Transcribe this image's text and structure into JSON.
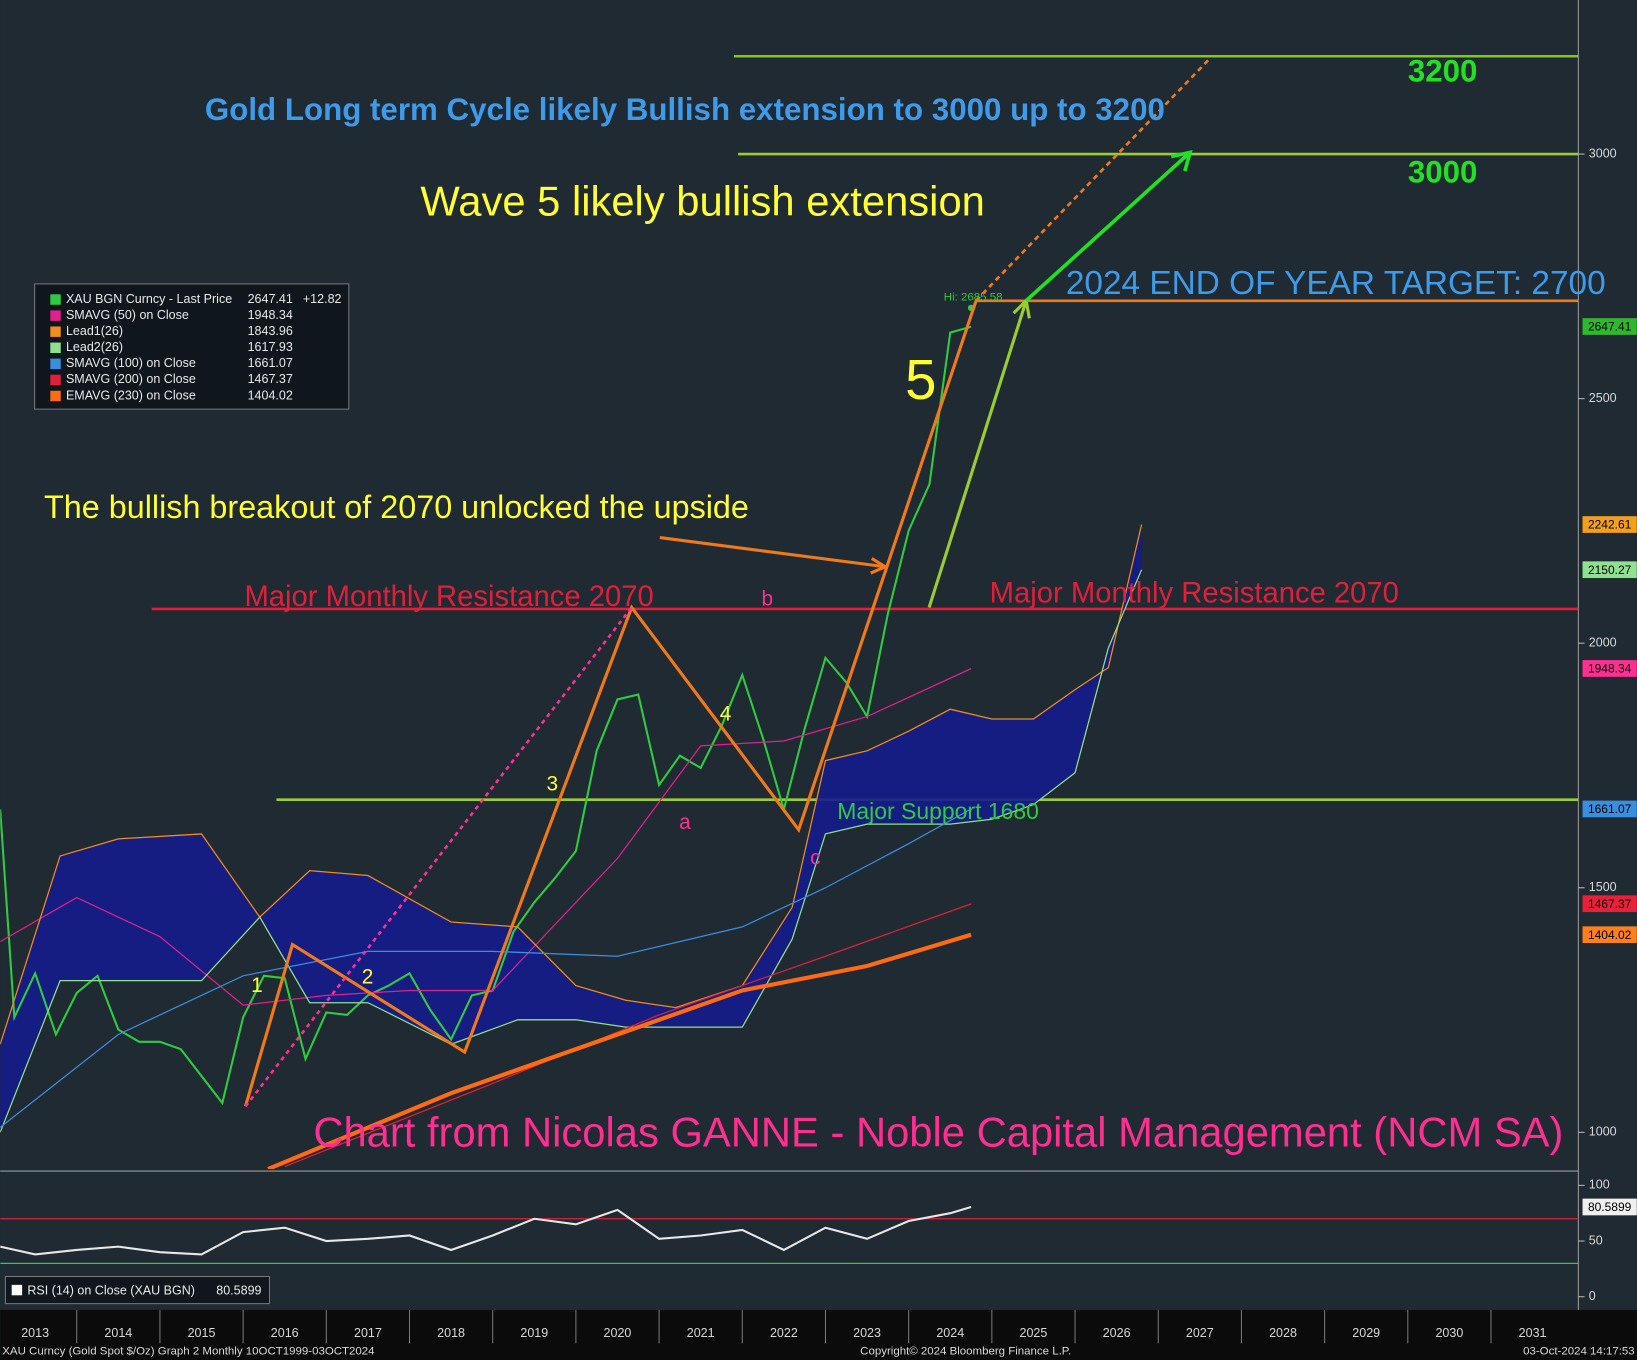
{
  "chart_data": [
    {
      "type": "line",
      "title": "Gold Long term Cycle likely Bullish extension to 3000 up to 3200",
      "annotations": [
        "Wave 5 likely bullish extension",
        "The bullish breakout of 2070 unlocked the upside",
        "Major Monthly Resistance 2070",
        "Major Monthly Resistance 2070",
        "Major Support 1680",
        "2024 END OF YEAR TARGET: 2700",
        "Chart from Nicolas GANNE - Noble Capital Management (NCM SA)"
      ],
      "wave_labels": [
        "1",
        "2",
        "3",
        "4",
        "5",
        "a",
        "b",
        "c"
      ],
      "xlim": [
        2013.08,
        2032.05
      ],
      "xticks": [
        2013,
        2014,
        2015,
        2016,
        2017,
        2018,
        2019,
        2020,
        2021,
        2022,
        2023,
        2024,
        2025,
        2026,
        2027,
        2028,
        2029,
        2030,
        2031
      ],
      "ylim": [
        925,
        3315
      ],
      "yticks": [
        1000,
        1500,
        2000,
        2500,
        3000
      ],
      "series": [
        {
          "name": "XAU BGN Curncy - Last Price",
          "color": "#2ecc40",
          "last": 2647.41,
          "change": {
            "value": 12.82,
            "label": "+12.82"
          },
          "x": [
            2013.08,
            2013.25,
            2013.5,
            2013.75,
            2014.0,
            2014.25,
            2014.5,
            2014.75,
            2015.0,
            2015.25,
            2015.5,
            2015.75,
            2016.0,
            2016.25,
            2016.5,
            2016.75,
            2017.0,
            2017.25,
            2017.5,
            2017.75,
            2018.0,
            2018.25,
            2018.5,
            2018.75,
            2019.0,
            2019.25,
            2019.5,
            2019.75,
            2020.0,
            2020.25,
            2020.5,
            2020.75,
            2021.0,
            2021.25,
            2021.5,
            2021.75,
            2022.0,
            2022.25,
            2022.5,
            2022.75,
            2023.0,
            2023.25,
            2023.5,
            2023.75,
            2024.0,
            2024.25,
            2024.5,
            2024.75
          ],
          "values": [
            1660,
            1235,
            1325,
            1200,
            1285,
            1320,
            1210,
            1185,
            1185,
            1170,
            1115,
            1060,
            1235,
            1320,
            1315,
            1150,
            1245,
            1240,
            1280,
            1300,
            1325,
            1250,
            1190,
            1280,
            1290,
            1410,
            1470,
            1520,
            1575,
            1780,
            1885,
            1895,
            1710,
            1770,
            1745,
            1830,
            1935,
            1805,
            1660,
            1825,
            1970,
            1920,
            1850,
            2060,
            2230,
            2325,
            2635,
            2647
          ]
        },
        {
          "name": "SMAVG (50)  on Close",
          "color": "#e0208f",
          "last": 1948.34,
          "x": [
            2013.08,
            2014.0,
            2015.0,
            2016.0,
            2017.0,
            2018.0,
            2019.0,
            2020.5,
            2021.5,
            2022.5,
            2023.5,
            2024.75
          ],
          "values": [
            1390,
            1480,
            1400,
            1260,
            1280,
            1290,
            1290,
            1560,
            1790,
            1800,
            1850,
            1948
          ]
        },
        {
          "name": "Lead1(26)",
          "color": "#f28c1c",
          "last": 1843.96,
          "x": [
            2013.08,
            2013.8,
            2014.5,
            2015.5,
            2016.2,
            2016.8,
            2017.5,
            2018.5,
            2019.3,
            2020.0,
            2020.6,
            2021.2,
            2022.0,
            2022.6,
            2023.0,
            2023.5,
            2024.0,
            2024.5,
            2025.0,
            2025.5,
            2026.0,
            2026.4,
            2026.8
          ],
          "values": [
            1180,
            1565,
            1600,
            1610,
            1440,
            1535,
            1525,
            1430,
            1420,
            1300,
            1270,
            1255,
            1300,
            1460,
            1760,
            1780,
            1820,
            1865,
            1845,
            1845,
            1905,
            1950,
            2242.61
          ]
        },
        {
          "name": "Lead2(26)",
          "color": "#8fe08f",
          "last": 1617.93,
          "x": [
            2013.08,
            2013.8,
            2014.5,
            2015.5,
            2016.2,
            2016.8,
            2017.5,
            2018.5,
            2019.3,
            2020.0,
            2020.6,
            2021.2,
            2022.0,
            2022.6,
            2023.0,
            2023.5,
            2024.0,
            2024.5,
            2025.0,
            2025.5,
            2026.0,
            2026.4,
            2026.8
          ],
          "values": [
            1000,
            1310,
            1310,
            1310,
            1440,
            1265,
            1265,
            1180,
            1230,
            1230,
            1215,
            1215,
            1215,
            1395,
            1610,
            1630,
            1630,
            1630,
            1640,
            1670,
            1735,
            1990,
            2150.27
          ]
        },
        {
          "name": "SMAVG (100)  on Close",
          "color": "#3a8ee0",
          "last": 1661.07,
          "x": [
            2013.08,
            2014.5,
            2016.0,
            2017.5,
            2019.0,
            2020.5,
            2022.0,
            2023.0,
            2024.0,
            2024.75
          ],
          "values": [
            1010,
            1200,
            1320,
            1370,
            1370,
            1360,
            1420,
            1500,
            1590,
            1661
          ]
        },
        {
          "name": "SMAVG (200)  on Close",
          "color": "#e0203a",
          "last": 1467.37,
          "x": [
            2016.5,
            2019.0,
            2021.0,
            2023.0,
            2024.75
          ],
          "values": [
            930,
            1100,
            1240,
            1360,
            1467
          ]
        },
        {
          "name": "EMAVG (230)  on Close",
          "color": "#ff6a13",
          "last": 1404.02,
          "x": [
            2016.3,
            2018.5,
            2020.5,
            2022.0,
            2023.5,
            2024.75
          ],
          "values": [
            925,
            1080,
            1200,
            1290,
            1340,
            1404
          ]
        }
      ],
      "levels": [
        {
          "value": 3200,
          "color": "#7ec82a",
          "start": 2021.9
        },
        {
          "value": 3000,
          "color": "#9acd32",
          "start": 2021.95
        },
        {
          "value": 2700,
          "color": "#f07a1a",
          "start": 2024.8
        },
        {
          "value": 2070,
          "color": "#e0203a",
          "start": 2014.9
        },
        {
          "value": 1680,
          "color": "#9acd32",
          "start": 2016.4
        }
      ],
      "high": {
        "x": 2024.75,
        "value": 2685.58,
        "label": "Hi: 2685.58"
      },
      "price_tags": [
        {
          "value": 2647.41,
          "color": "#2eb82e"
        },
        {
          "value": 2242.61,
          "color": "#f2a01c"
        },
        {
          "value": 2150.27,
          "color": "#8fe08f"
        },
        {
          "value": 1948.34,
          "color": "#ff2f92"
        },
        {
          "value": 1661.07,
          "color": "#3a8ee0"
        },
        {
          "value": 1467.37,
          "color": "#e8203a"
        },
        {
          "value": 1404.02,
          "color": "#ff7f1c"
        }
      ]
    },
    {
      "type": "line",
      "ylim": [
        -9,
        110
      ],
      "yticks": [
        0,
        50,
        100
      ],
      "levels": [
        {
          "value": 70,
          "color": "#e0203a"
        },
        {
          "value": 30,
          "color": "#2ecc40"
        }
      ],
      "series": [
        {
          "name": "RSI (14)  on Close (XAU BGN)",
          "color": "#e8e8e8",
          "last": 80.5899,
          "x": [
            2013.08,
            2013.5,
            2014.0,
            2014.5,
            2015.0,
            2015.5,
            2016.0,
            2016.5,
            2017.0,
            2017.5,
            2018.0,
            2018.5,
            2019.0,
            2019.5,
            2020.0,
            2020.5,
            2021.0,
            2021.5,
            2022.0,
            2022.5,
            2023.0,
            2023.5,
            2024.0,
            2024.5,
            2024.75
          ],
          "values": [
            45,
            38,
            42,
            45,
            40,
            38,
            58,
            62,
            50,
            52,
            55,
            42,
            55,
            70,
            65,
            78,
            52,
            55,
            60,
            42,
            62,
            52,
            68,
            75,
            80.5899
          ]
        }
      ]
    }
  ],
  "footer": {
    "left": "XAU Curncy (Gold Spot  $/Oz) Graph 2  Monthly 10OCT1999-03OCT2024",
    "center": "Copyright© 2024 Bloomberg Finance L.P.",
    "right": "03-Oct-2024 14:17:53"
  }
}
